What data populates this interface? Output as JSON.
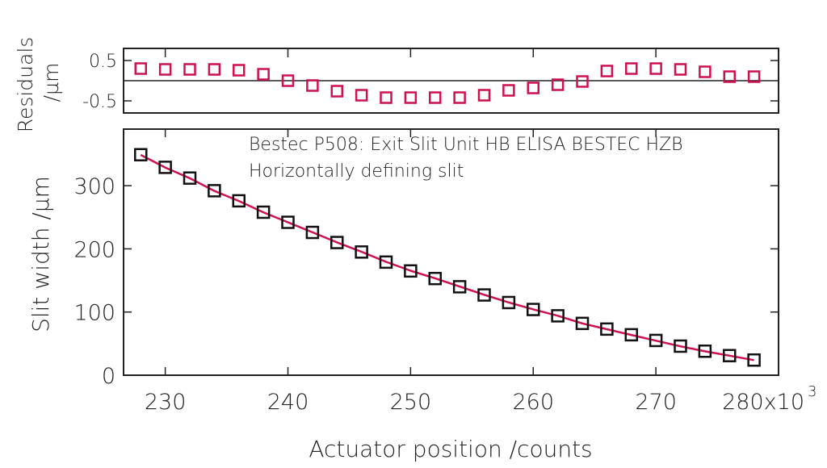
{
  "chart_data": [
    {
      "type": "scatter",
      "panel": "residuals",
      "ylabel_line1": "Residuals",
      "ylabel_line2": "/µm",
      "ylim": [
        -0.75,
        0.75
      ],
      "yticks": [
        0.5,
        -0.5
      ],
      "ytick_labels": [
        "0.5",
        "-0.5"
      ],
      "xlim": [
        226.6,
        280
      ],
      "zero_line": true,
      "marker_color": "#d0104c",
      "x": [
        228,
        230,
        232,
        234,
        236,
        238,
        240,
        242,
        244,
        246,
        248,
        250,
        252,
        254,
        256,
        258,
        260,
        262,
        264,
        266,
        268,
        270,
        272,
        274,
        276,
        278
      ],
      "y": [
        0.3,
        0.28,
        0.28,
        0.28,
        0.26,
        0.16,
        0.0,
        -0.12,
        -0.26,
        -0.36,
        -0.42,
        -0.42,
        -0.42,
        -0.42,
        -0.36,
        -0.24,
        -0.18,
        -0.1,
        -0.02,
        0.24,
        0.3,
        0.3,
        0.28,
        0.22,
        0.1,
        0.1
      ]
    },
    {
      "type": "scatter",
      "panel": "main",
      "annotation_line1": "Bestec P508: Exit Slit Unit HB ELISA BESTEC HZB",
      "annotation_line2": "Horizontally defining slit",
      "xlabel": "Actuator position /counts",
      "ylabel": "Slit width /µm",
      "xlim": [
        226.6,
        280
      ],
      "ylim": [
        0,
        380
      ],
      "xticks": [
        230,
        240,
        250,
        260,
        270,
        280
      ],
      "xtick_labels": [
        "230",
        "240",
        "250",
        "260",
        "270",
        "280x10"
      ],
      "x_exponent": "3",
      "yticks": [
        0,
        100,
        200,
        300
      ],
      "ytick_labels": [
        "0",
        "100",
        "200",
        "300"
      ],
      "marker_color": "#111111",
      "fit_color": "#d0104c",
      "x": [
        228,
        230,
        232,
        234,
        236,
        238,
        240,
        242,
        244,
        246,
        248,
        250,
        252,
        254,
        256,
        258,
        260,
        262,
        264,
        266,
        268,
        270,
        272,
        274,
        276,
        278
      ],
      "y": [
        349,
        329,
        312,
        292,
        276,
        258,
        242,
        226,
        210,
        195,
        179,
        165,
        153,
        140,
        127,
        115,
        104,
        94,
        82,
        73,
        64,
        55,
        46,
        38,
        31,
        24
      ]
    }
  ]
}
